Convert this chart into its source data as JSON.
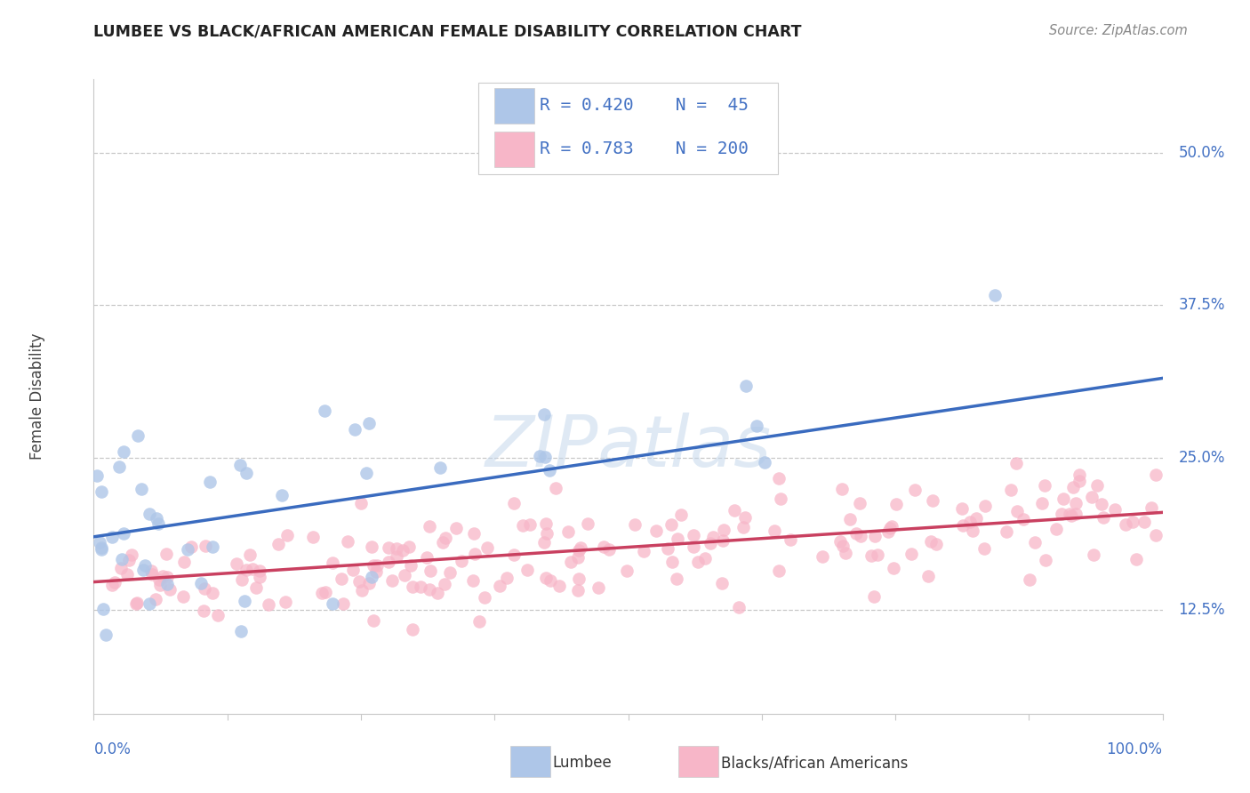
{
  "title": "LUMBEE VS BLACK/AFRICAN AMERICAN FEMALE DISABILITY CORRELATION CHART",
  "source": "Source: ZipAtlas.com",
  "ylabel": "Female Disability",
  "R_lumbee": 0.42,
  "N_lumbee": 45,
  "R_black": 0.783,
  "N_black": 200,
  "blue_color": "#aec6e8",
  "pink_color": "#f7b6c8",
  "blue_line_color": "#3a6bbf",
  "pink_line_color": "#c94060",
  "legend_lumbee": "Lumbee",
  "legend_black": "Blacks/African Americans",
  "ytick_values": [
    0.125,
    0.25,
    0.375,
    0.5
  ],
  "ytick_labels": [
    "12.5%",
    "25.0%",
    "37.5%",
    "50.0%"
  ],
  "lumbee_line_y0": 0.185,
  "lumbee_line_y1": 0.315,
  "black_line_y0": 0.148,
  "black_line_y1": 0.205,
  "xlim": [
    0,
    100
  ],
  "ylim": [
    0.04,
    0.56
  ],
  "watermark_text": "ZIPatlas",
  "watermark_color": "#c5d8ec",
  "title_color": "#222222",
  "source_color": "#888888",
  "label_color": "#4472C4",
  "grid_color": "#c8c8c8",
  "legend_border_color": "#cccccc"
}
